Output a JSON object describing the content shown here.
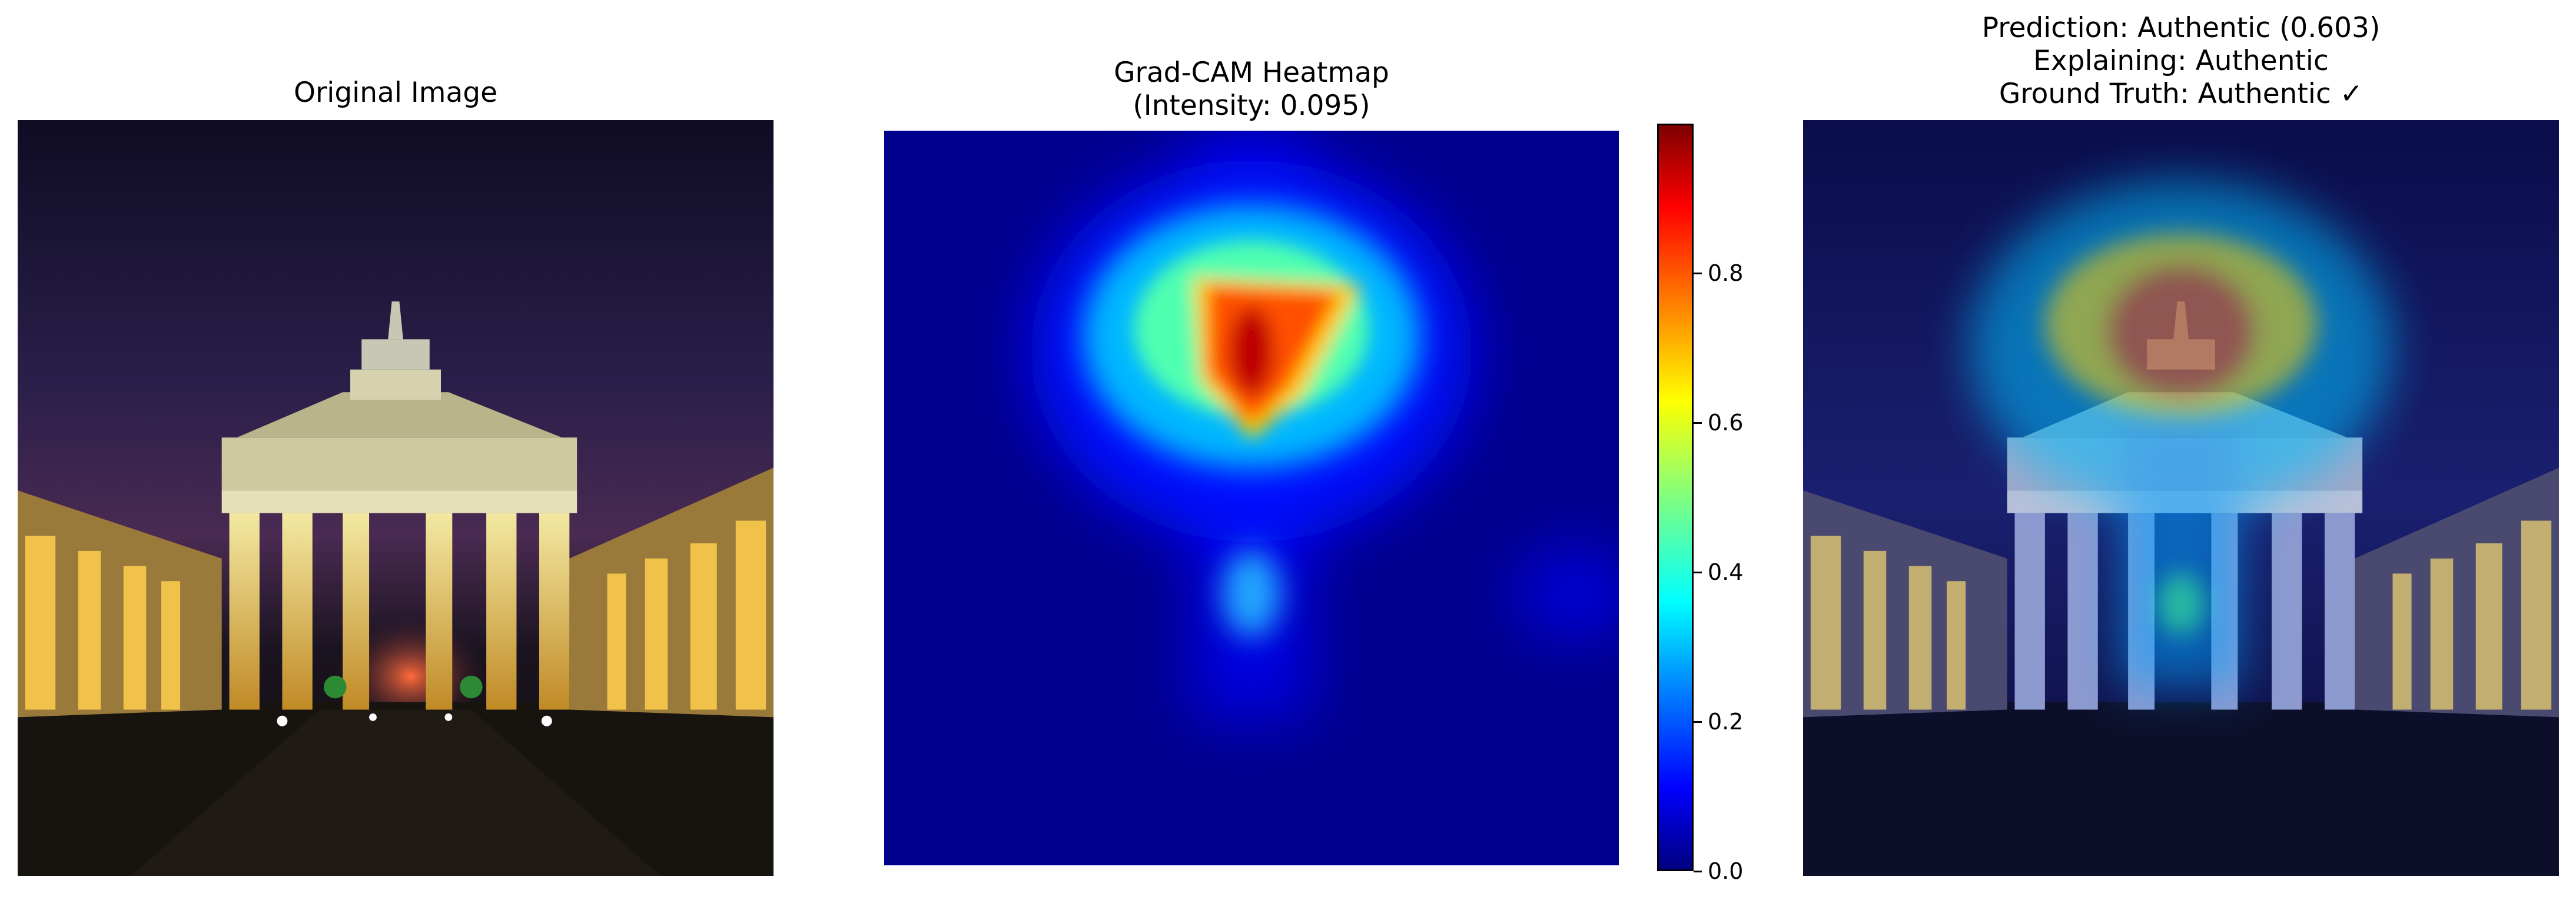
{
  "panels": {
    "original": {
      "title": "Original Image"
    },
    "heatmap": {
      "title_line1": "Grad-CAM Heatmap",
      "title_line2": "(Intensity: 0.095)"
    },
    "overlay": {
      "title_line1": "Prediction: Authentic (0.603)",
      "title_line2": "Explaining: Authentic",
      "title_line3": "Ground Truth: Authentic ✓"
    }
  },
  "colorbar": {
    "colormap": "jet",
    "ticks": [
      "0.0",
      "0.2",
      "0.4",
      "0.6",
      "0.8"
    ],
    "tick_values": [
      0.0,
      0.2,
      0.4,
      0.6,
      0.8
    ],
    "range": [
      0.0,
      1.0
    ]
  }
}
